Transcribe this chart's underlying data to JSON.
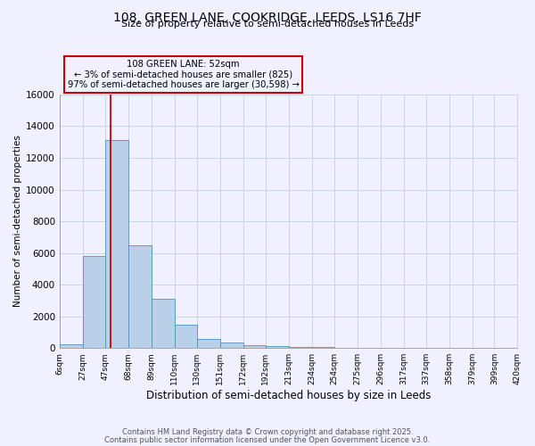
{
  "title_line1": "108, GREEN LANE, COOKRIDGE, LEEDS, LS16 7HF",
  "title_line2": "Size of property relative to semi-detached houses in Leeds",
  "xlabel": "Distribution of semi-detached houses by size in Leeds",
  "ylabel": "Number of semi-detached properties",
  "bin_edges": [
    6,
    27,
    47,
    68,
    89,
    110,
    130,
    151,
    172,
    192,
    213,
    234,
    254,
    275,
    296,
    317,
    337,
    358,
    379,
    399,
    420
  ],
  "bin_labels": [
    "6sqm",
    "27sqm",
    "47sqm",
    "68sqm",
    "89sqm",
    "110sqm",
    "130sqm",
    "151sqm",
    "172sqm",
    "192sqm",
    "213sqm",
    "234sqm",
    "254sqm",
    "275sqm",
    "296sqm",
    "317sqm",
    "337sqm",
    "358sqm",
    "379sqm",
    "399sqm",
    "420sqm"
  ],
  "counts": [
    250,
    5800,
    13100,
    6500,
    3100,
    1450,
    600,
    350,
    200,
    100,
    80,
    50,
    30,
    20,
    10,
    5,
    3,
    2,
    1,
    1
  ],
  "bar_color": "#b8d0e8",
  "bar_edge_color": "#5090c0",
  "property_value": 52,
  "vline_color": "#cc0000",
  "annotation_text": "108 GREEN LANE: 52sqm\n← 3% of semi-detached houses are smaller (825)\n97% of semi-detached houses are larger (30,598) →",
  "annotation_box_edge": "#cc0000",
  "ylim": [
    0,
    16000
  ],
  "yticks": [
    0,
    2000,
    4000,
    6000,
    8000,
    10000,
    12000,
    14000,
    16000
  ],
  "footer_line1": "Contains HM Land Registry data © Crown copyright and database right 2025.",
  "footer_line2": "Contains public sector information licensed under the Open Government Licence v3.0.",
  "bg_color": "#f0f0ff",
  "grid_color": "#c8d4e4"
}
